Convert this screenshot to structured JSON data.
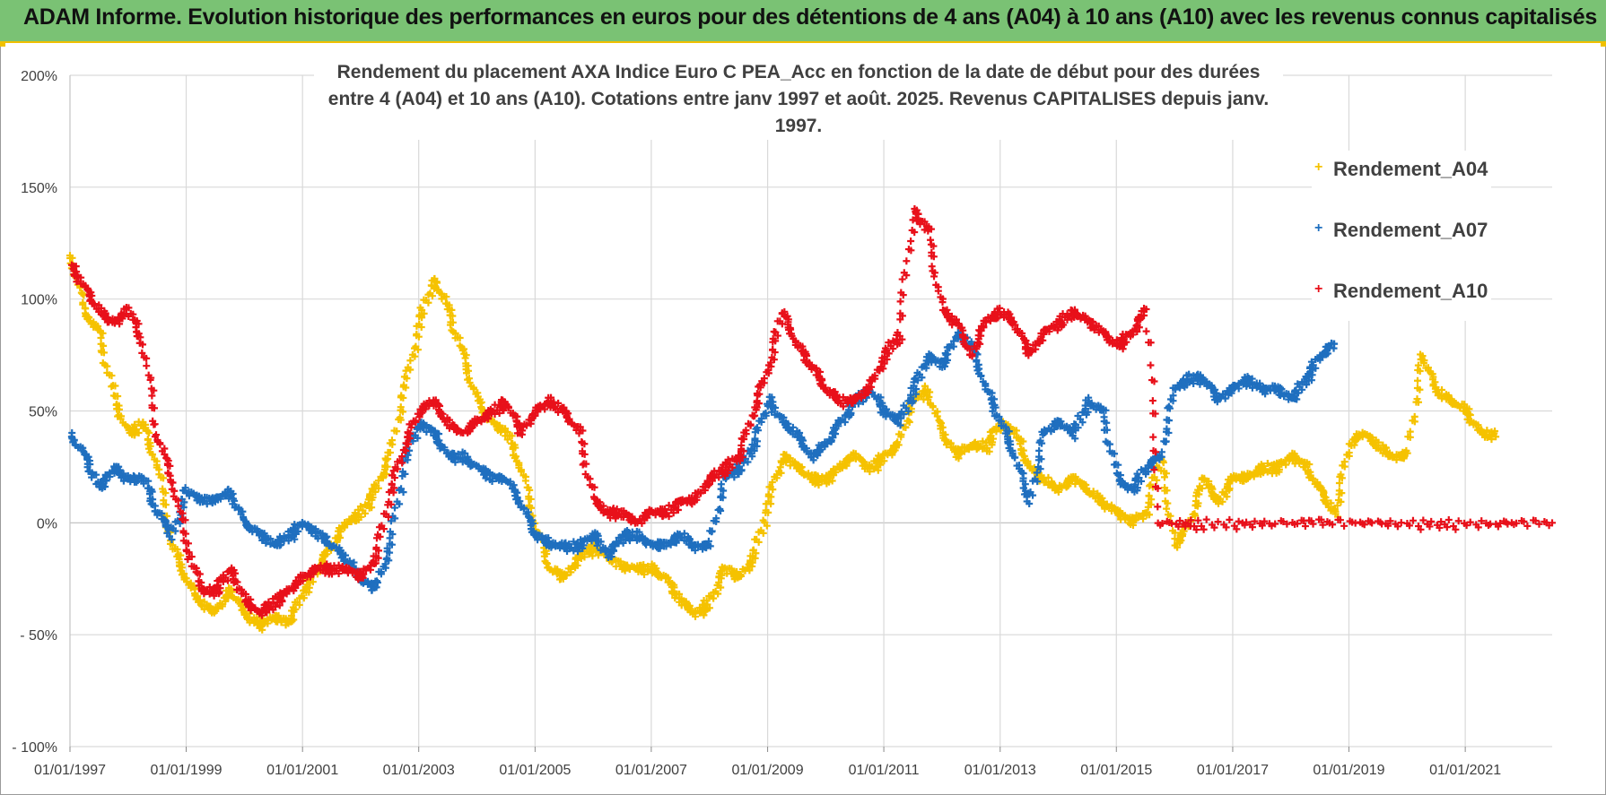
{
  "header": {
    "title": "ADAM Informe. Evolution historique des performances en euros pour des détentions de 4 ans (A04) à 10 ans (A10) avec les revenus connus capitalisés"
  },
  "colors": {
    "banner": "#7ac274",
    "accent": "#f0c000",
    "series_A04": "#f5c200",
    "series_A07": "#1f6fbf",
    "series_A10": "#e8101a"
  },
  "chart_data": {
    "type": "scatter",
    "title_line1": "Rendement du placement AXA Indice Euro C PEA_Acc en fonction de la date de début pour des durées",
    "title_line2": "entre 4 (A04) et 10 ans (A10).  Cotations entre janv 1997 et août. 2025. Revenus CAPITALISES depuis janv. 1997.",
    "xlabel": "",
    "ylabel": "",
    "ylim": [
      -100,
      200
    ],
    "y_unit": "%",
    "y_ticks": [
      {
        "value": 200,
        "label": "200%"
      },
      {
        "value": 150,
        "label": "150%"
      },
      {
        "value": 100,
        "label": "100%"
      },
      {
        "value": 50,
        "label": "50%"
      },
      {
        "value": 0,
        "label": "0%"
      },
      {
        "value": -50,
        "label": "- 50%"
      },
      {
        "value": -100,
        "label": "- 100%"
      }
    ],
    "xlim": [
      "1997-01-01",
      "2022-07-01"
    ],
    "x_ticks": [
      "01/01/1997",
      "01/01/1999",
      "01/01/2001",
      "01/01/2003",
      "01/01/2005",
      "01/01/2007",
      "01/01/2009",
      "01/01/2011",
      "01/01/2013",
      "01/01/2015",
      "01/01/2017",
      "01/01/2019",
      "01/01/2021"
    ],
    "grid": true,
    "legend_position": "right",
    "marker": "+",
    "series": [
      {
        "name": "Rendement_A04",
        "color": "#f5c200",
        "points": [
          [
            "1997-01-01",
            120
          ],
          [
            "1997-04-01",
            95
          ],
          [
            "1997-07-01",
            85
          ],
          [
            "1997-10-01",
            55
          ],
          [
            "1998-01-01",
            40
          ],
          [
            "1998-04-01",
            45
          ],
          [
            "1998-07-01",
            25
          ],
          [
            "1998-10-01",
            -10
          ],
          [
            "1999-01-01",
            -25
          ],
          [
            "1999-04-01",
            -35
          ],
          [
            "1999-07-01",
            -40
          ],
          [
            "1999-10-01",
            -30
          ],
          [
            "2000-01-01",
            -40
          ],
          [
            "2000-04-01",
            -45
          ],
          [
            "2000-07-01",
            -42
          ],
          [
            "2000-10-01",
            -45
          ],
          [
            "2001-01-01",
            -30
          ],
          [
            "2001-04-01",
            -20
          ],
          [
            "2001-07-01",
            -10
          ],
          [
            "2001-10-01",
            0
          ],
          [
            "2002-01-01",
            5
          ],
          [
            "2002-04-01",
            15
          ],
          [
            "2002-07-01",
            30
          ],
          [
            "2002-10-01",
            60
          ],
          [
            "2003-01-01",
            90
          ],
          [
            "2003-04-01",
            110
          ],
          [
            "2003-07-01",
            95
          ],
          [
            "2003-10-01",
            75
          ],
          [
            "2004-01-01",
            55
          ],
          [
            "2004-04-01",
            45
          ],
          [
            "2004-07-01",
            40
          ],
          [
            "2004-10-01",
            25
          ],
          [
            "2005-01-01",
            0
          ],
          [
            "2005-04-01",
            -20
          ],
          [
            "2005-07-01",
            -25
          ],
          [
            "2005-10-01",
            -15
          ],
          [
            "2006-01-01",
            -10
          ],
          [
            "2006-04-01",
            -15
          ],
          [
            "2006-07-01",
            -20
          ],
          [
            "2006-10-01",
            -20
          ],
          [
            "2007-01-01",
            -20
          ],
          [
            "2007-04-01",
            -25
          ],
          [
            "2007-07-01",
            -35
          ],
          [
            "2007-10-01",
            -40
          ],
          [
            "2008-01-01",
            -35
          ],
          [
            "2008-04-01",
            -20
          ],
          [
            "2008-07-01",
            -25
          ],
          [
            "2008-10-01",
            -15
          ],
          [
            "2009-01-01",
            10
          ],
          [
            "2009-04-01",
            30
          ],
          [
            "2009-07-01",
            25
          ],
          [
            "2009-10-01",
            20
          ],
          [
            "2010-01-01",
            20
          ],
          [
            "2010-04-01",
            25
          ],
          [
            "2010-07-01",
            30
          ],
          [
            "2010-10-01",
            25
          ],
          [
            "2011-01-01",
            30
          ],
          [
            "2011-04-01",
            35
          ],
          [
            "2011-07-01",
            55
          ],
          [
            "2011-10-01",
            60
          ],
          [
            "2012-01-01",
            40
          ],
          [
            "2012-04-01",
            30
          ],
          [
            "2012-07-01",
            35
          ],
          [
            "2012-10-01",
            35
          ],
          [
            "2013-01-01",
            45
          ],
          [
            "2013-04-01",
            40
          ],
          [
            "2013-07-01",
            25
          ],
          [
            "2013-10-01",
            20
          ],
          [
            "2014-01-01",
            15
          ],
          [
            "2014-04-01",
            20
          ],
          [
            "2014-07-01",
            15
          ],
          [
            "2014-10-01",
            10
          ],
          [
            "2015-01-01",
            5
          ],
          [
            "2015-04-01",
            0
          ],
          [
            "2015-07-01",
            5
          ],
          [
            "2015-10-01",
            30
          ],
          [
            "2016-01-01",
            -10
          ],
          [
            "2016-04-01",
            0
          ],
          [
            "2016-07-01",
            20
          ],
          [
            "2016-10-01",
            10
          ],
          [
            "2017-01-01",
            20
          ],
          [
            "2017-04-01",
            20
          ],
          [
            "2017-07-01",
            25
          ],
          [
            "2017-10-01",
            25
          ],
          [
            "2018-01-01",
            30
          ],
          [
            "2018-04-01",
            25
          ],
          [
            "2018-07-01",
            15
          ],
          [
            "2018-10-01",
            5
          ],
          [
            "2019-01-01",
            35
          ],
          [
            "2019-04-01",
            40
          ],
          [
            "2019-07-01",
            35
          ],
          [
            "2019-10-01",
            30
          ],
          [
            "2020-01-01",
            30
          ],
          [
            "2020-04-01",
            75
          ],
          [
            "2020-07-01",
            60
          ],
          [
            "2020-10-01",
            55
          ],
          [
            "2021-01-01",
            50
          ],
          [
            "2021-04-01",
            40
          ],
          [
            "2021-07-01",
            40
          ]
        ]
      },
      {
        "name": "Rendement_A07",
        "color": "#1f6fbf",
        "points": [
          [
            "1997-01-01",
            40
          ],
          [
            "1997-04-01",
            30
          ],
          [
            "1997-07-01",
            15
          ],
          [
            "1997-10-01",
            25
          ],
          [
            "1998-01-01",
            20
          ],
          [
            "1998-04-01",
            20
          ],
          [
            "1998-07-01",
            5
          ],
          [
            "1998-10-01",
            -5
          ],
          [
            "1999-01-01",
            15
          ],
          [
            "1999-04-01",
            10
          ],
          [
            "1999-07-01",
            10
          ],
          [
            "1999-10-01",
            15
          ],
          [
            "2000-01-01",
            0
          ],
          [
            "2000-04-01",
            -5
          ],
          [
            "2000-07-01",
            -10
          ],
          [
            "2000-10-01",
            -5
          ],
          [
            "2001-01-01",
            0
          ],
          [
            "2001-04-01",
            -5
          ],
          [
            "2001-07-01",
            -10
          ],
          [
            "2001-10-01",
            -15
          ],
          [
            "2002-01-01",
            -25
          ],
          [
            "2002-04-01",
            -30
          ],
          [
            "2002-07-01",
            -10
          ],
          [
            "2002-10-01",
            30
          ],
          [
            "2003-01-01",
            45
          ],
          [
            "2003-04-01",
            40
          ],
          [
            "2003-07-01",
            30
          ],
          [
            "2003-10-01",
            30
          ],
          [
            "2004-01-01",
            25
          ],
          [
            "2004-04-01",
            20
          ],
          [
            "2004-07-01",
            20
          ],
          [
            "2004-10-01",
            10
          ],
          [
            "2005-01-01",
            -5
          ],
          [
            "2005-04-01",
            -10
          ],
          [
            "2005-07-01",
            -10
          ],
          [
            "2005-10-01",
            -10
          ],
          [
            "2006-01-01",
            -5
          ],
          [
            "2006-04-01",
            -15
          ],
          [
            "2006-07-01",
            -5
          ],
          [
            "2006-10-01",
            -5
          ],
          [
            "2007-01-01",
            -10
          ],
          [
            "2007-04-01",
            -10
          ],
          [
            "2007-07-01",
            -5
          ],
          [
            "2007-10-01",
            -10
          ],
          [
            "2008-01-01",
            -10
          ],
          [
            "2008-04-01",
            20
          ],
          [
            "2008-07-01",
            25
          ],
          [
            "2008-10-01",
            35
          ],
          [
            "2009-01-01",
            55
          ],
          [
            "2009-04-01",
            45
          ],
          [
            "2009-07-01",
            40
          ],
          [
            "2009-10-01",
            30
          ],
          [
            "2010-01-01",
            35
          ],
          [
            "2010-04-01",
            45
          ],
          [
            "2010-07-01",
            55
          ],
          [
            "2010-10-01",
            60
          ],
          [
            "2011-01-01",
            50
          ],
          [
            "2011-04-01",
            45
          ],
          [
            "2011-07-01",
            60
          ],
          [
            "2011-10-01",
            75
          ],
          [
            "2012-01-01",
            70
          ],
          [
            "2012-04-01",
            85
          ],
          [
            "2012-07-01",
            80
          ],
          [
            "2012-10-01",
            60
          ],
          [
            "2013-01-01",
            45
          ],
          [
            "2013-04-01",
            30
          ],
          [
            "2013-07-01",
            10
          ],
          [
            "2013-10-01",
            40
          ],
          [
            "2014-01-01",
            45
          ],
          [
            "2014-04-01",
            40
          ],
          [
            "2014-07-01",
            55
          ],
          [
            "2014-10-01",
            50
          ],
          [
            "2015-01-01",
            20
          ],
          [
            "2015-04-01",
            15
          ],
          [
            "2015-07-01",
            25
          ],
          [
            "2015-10-01",
            30
          ],
          [
            "2016-01-01",
            60
          ],
          [
            "2016-04-01",
            65
          ],
          [
            "2016-07-01",
            65
          ],
          [
            "2016-10-01",
            55
          ],
          [
            "2017-01-01",
            60
          ],
          [
            "2017-04-01",
            65
          ],
          [
            "2017-07-01",
            60
          ],
          [
            "2017-10-01",
            60
          ],
          [
            "2018-01-01",
            55
          ],
          [
            "2018-04-01",
            65
          ],
          [
            "2018-07-01",
            75
          ],
          [
            "2018-10-01",
            80
          ]
        ]
      },
      {
        "name": "Rendement_A10",
        "color": "#e8101a",
        "points": [
          [
            "1997-01-01",
            115
          ],
          [
            "1997-04-01",
            105
          ],
          [
            "1997-07-01",
            95
          ],
          [
            "1997-10-01",
            90
          ],
          [
            "1998-01-01",
            95
          ],
          [
            "1998-04-01",
            80
          ],
          [
            "1998-07-01",
            40
          ],
          [
            "1998-10-01",
            20
          ],
          [
            "1999-01-01",
            -10
          ],
          [
            "1999-04-01",
            -30
          ],
          [
            "1999-07-01",
            -30
          ],
          [
            "1999-10-01",
            -20
          ],
          [
            "2000-01-01",
            -35
          ],
          [
            "2000-04-01",
            -40
          ],
          [
            "2000-07-01",
            -35
          ],
          [
            "2000-10-01",
            -30
          ],
          [
            "2001-01-01",
            -25
          ],
          [
            "2001-04-01",
            -20
          ],
          [
            "2001-07-01",
            -20
          ],
          [
            "2001-10-01",
            -20
          ],
          [
            "2002-01-01",
            -25
          ],
          [
            "2002-04-01",
            -15
          ],
          [
            "2002-07-01",
            15
          ],
          [
            "2002-10-01",
            35
          ],
          [
            "2003-01-01",
            50
          ],
          [
            "2003-04-01",
            55
          ],
          [
            "2003-07-01",
            45
          ],
          [
            "2003-10-01",
            40
          ],
          [
            "2004-01-01",
            45
          ],
          [
            "2004-04-01",
            50
          ],
          [
            "2004-07-01",
            55
          ],
          [
            "2004-10-01",
            40
          ],
          [
            "2005-01-01",
            50
          ],
          [
            "2005-04-01",
            55
          ],
          [
            "2005-07-01",
            50
          ],
          [
            "2005-10-01",
            40
          ],
          [
            "2006-01-01",
            10
          ],
          [
            "2006-04-01",
            5
          ],
          [
            "2006-07-01",
            5
          ],
          [
            "2006-10-01",
            0
          ],
          [
            "2007-01-01",
            5
          ],
          [
            "2007-04-01",
            5
          ],
          [
            "2007-07-01",
            10
          ],
          [
            "2007-10-01",
            10
          ],
          [
            "2008-01-01",
            20
          ],
          [
            "2008-04-01",
            25
          ],
          [
            "2008-07-01",
            30
          ],
          [
            "2008-10-01",
            50
          ],
          [
            "2009-01-01",
            70
          ],
          [
            "2009-04-01",
            95
          ],
          [
            "2009-07-01",
            80
          ],
          [
            "2009-10-01",
            70
          ],
          [
            "2010-01-01",
            60
          ],
          [
            "2010-04-01",
            55
          ],
          [
            "2010-07-01",
            55
          ],
          [
            "2010-10-01",
            60
          ],
          [
            "2011-01-01",
            75
          ],
          [
            "2011-04-01",
            85
          ],
          [
            "2011-07-01",
            140
          ],
          [
            "2011-10-01",
            130
          ],
          [
            "2012-01-01",
            95
          ],
          [
            "2012-04-01",
            90
          ],
          [
            "2012-07-01",
            75
          ],
          [
            "2012-10-01",
            90
          ],
          [
            "2013-01-01",
            95
          ],
          [
            "2013-04-01",
            90
          ],
          [
            "2013-07-01",
            75
          ],
          [
            "2013-10-01",
            85
          ],
          [
            "2014-01-01",
            90
          ],
          [
            "2014-04-01",
            95
          ],
          [
            "2014-07-01",
            90
          ],
          [
            "2014-10-01",
            85
          ],
          [
            "2015-01-01",
            80
          ],
          [
            "2015-04-01",
            85
          ],
          [
            "2015-07-01",
            95
          ],
          [
            "2015-10-01",
            0
          ],
          [
            "2016-07-01",
            0
          ],
          [
            "2017-07-01",
            0
          ],
          [
            "2018-07-01",
            0
          ],
          [
            "2019-07-01",
            0
          ],
          [
            "2020-07-01",
            0
          ],
          [
            "2021-07-01",
            0
          ],
          [
            "2022-07-01",
            0
          ]
        ]
      }
    ]
  }
}
